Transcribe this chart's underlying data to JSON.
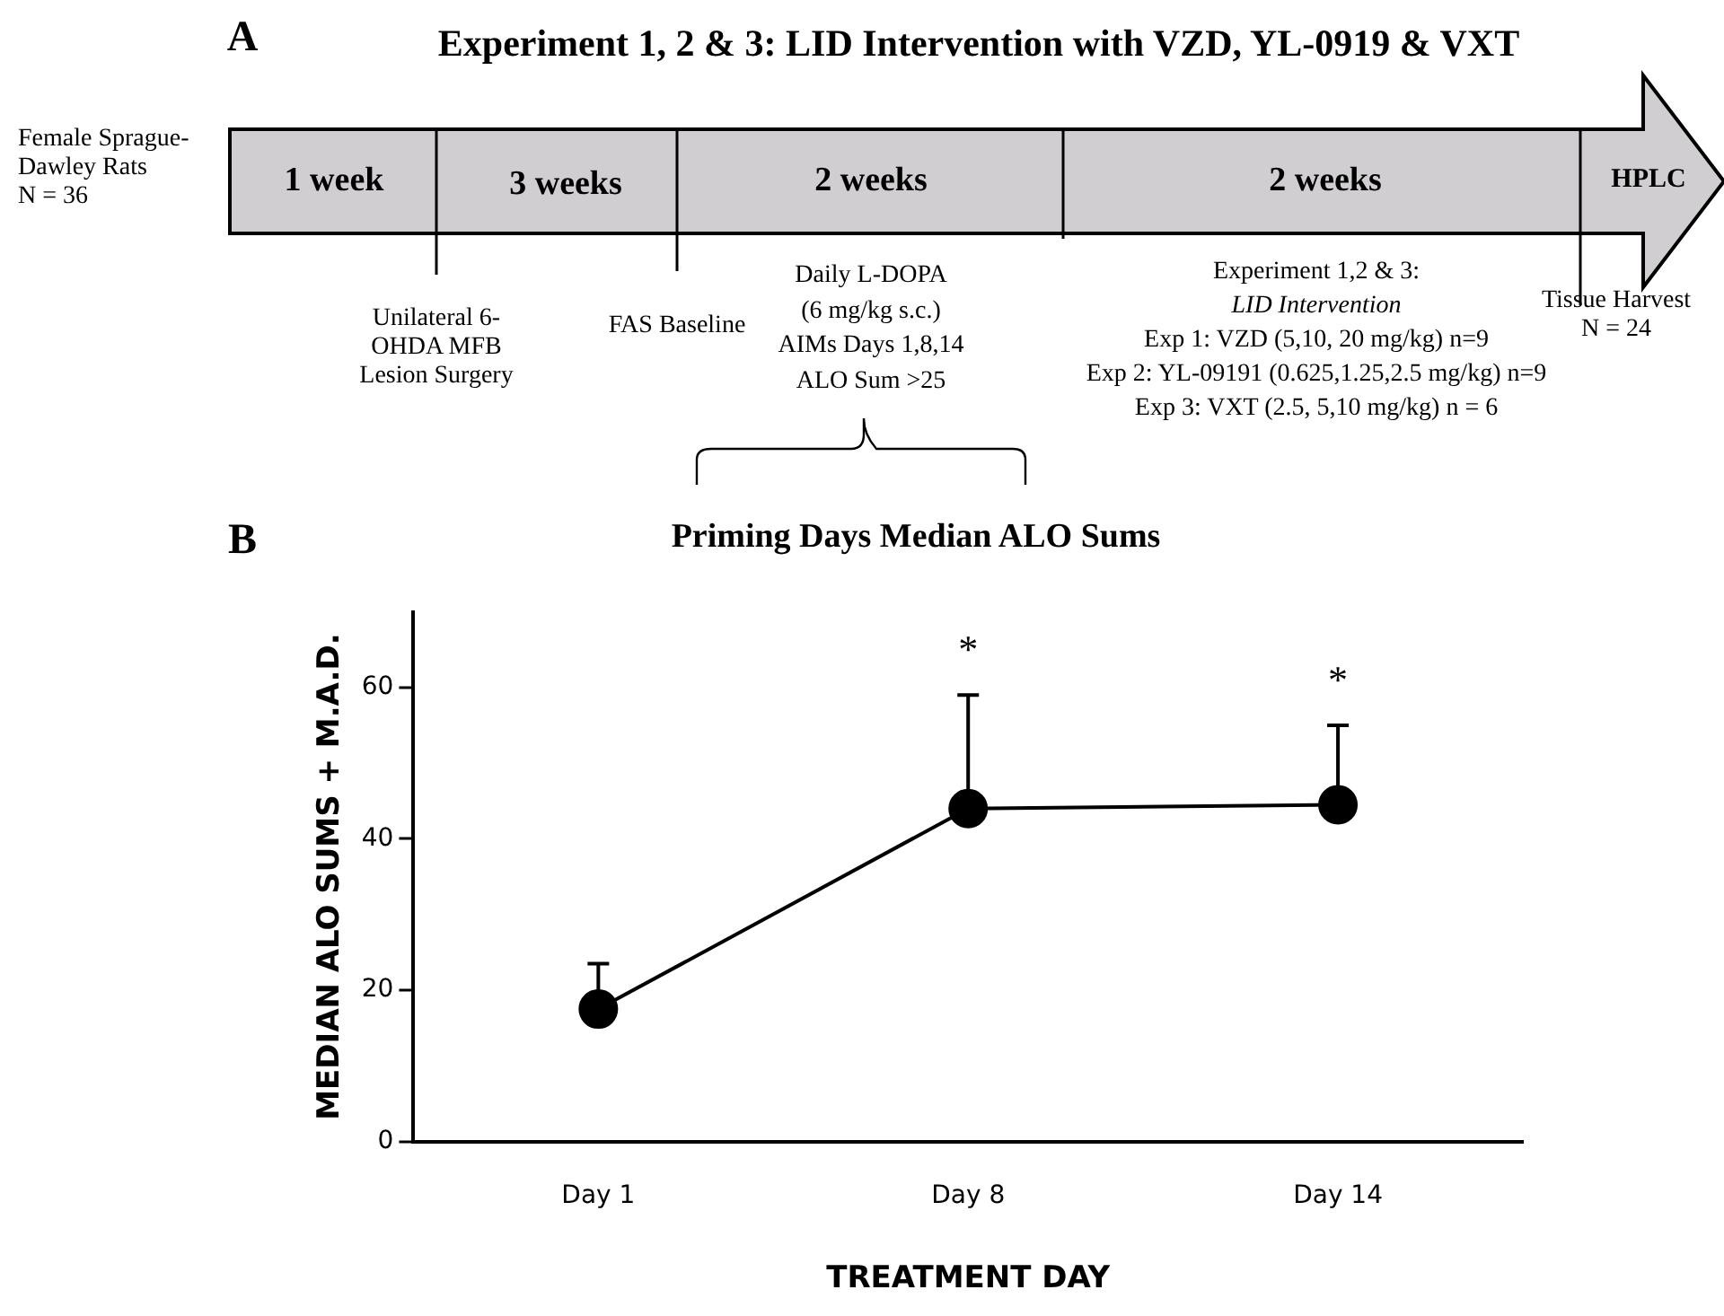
{
  "chart_data": [
    {
      "type": "other",
      "title": "Experiment 1, 2 & 3: LID Intervention with VZD, YL-0919 & VXT",
      "annotations": [
        "A",
        "Female Sprague-\nDawley Rats\nN = 36",
        "1 week",
        "3 weeks",
        "2 weeks",
        "2 weeks",
        "HPLC",
        "Unilateral 6-\nOHDA MFB\nLesion Surgery",
        "FAS Baseline",
        "Daily L-DOPA\n(6 mg/kg s.c.)\nAIMs Days 1,8,14\nALO Sum >25",
        "Experiment 1,2 & 3:",
        "LID Intervention",
        "Exp 1: VZD (5,10, 20 mg/kg) n=9",
        "Exp 2: YL-09191 (0.625,1.25,2.5 mg/kg) n=9",
        "Exp 3: VXT (2.5, 5,10 mg/kg) n = 6",
        "Tissue Harvest\nN = 24"
      ]
    },
    {
      "type": "line",
      "title": "Priming Days Median ALO Sums",
      "xlabel": "TREATMENT DAY",
      "ylabel": "MEDIAN ALO SUMS + M.A.D.",
      "categories": [
        "Day 1",
        "Day 8",
        "Day 14"
      ],
      "series": [
        {
          "color": "#000000",
          "values": [
            17.5,
            44,
            44.5
          ],
          "errors": [
            [
              17.5,
              23.5
            ],
            [
              44,
              59
            ],
            [
              44.5,
              55
            ]
          ]
        }
      ],
      "ylim": [
        0,
        70
      ],
      "yticks": [
        0,
        20,
        40,
        60
      ],
      "grid": false,
      "legend": false,
      "marker": "circle",
      "line_style": "solid",
      "annotations": [
        "B",
        "*",
        "*"
      ]
    }
  ]
}
